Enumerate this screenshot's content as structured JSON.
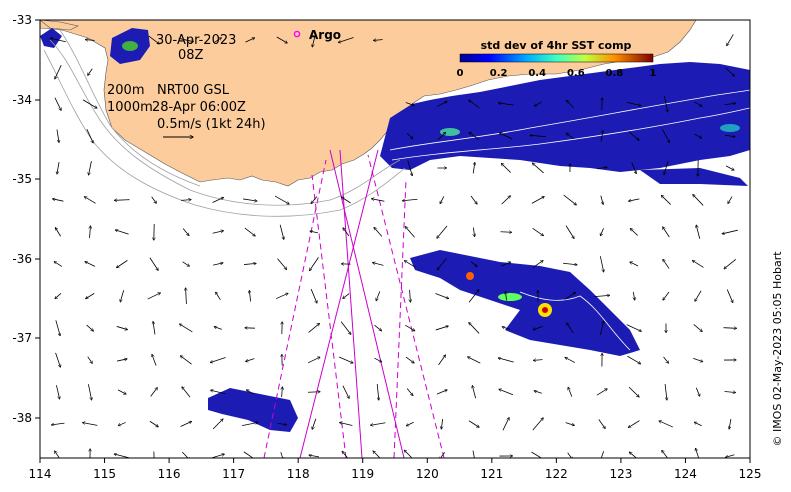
{
  "map": {
    "date": "30-Apr-2023",
    "hour": "08Z",
    "argo_label": "Argo",
    "contour_depths": "200m",
    "contour_depths_2": "1000m",
    "product": "NRT00 GSL",
    "product_time": "28-Apr 06:00Z",
    "scale_label": "0.5m/s (1kt 24h)",
    "credit": "© IMOS 02-May-2023 05:05 Hobart",
    "colorbar": {
      "title": "std dev of 4hr SST comp",
      "ticks": [
        "0",
        "0.2",
        "0.4",
        "0.6",
        "0.8",
        "1"
      ]
    },
    "x_ticks": [
      "114",
      "115",
      "116",
      "117",
      "118",
      "119",
      "120",
      "121",
      "122",
      "123",
      "124",
      "125"
    ],
    "y_ticks": [
      "-33",
      "-34",
      "-35",
      "-36",
      "-37",
      "-38"
    ],
    "colors": {
      "land": "#fccc9c",
      "sst_low": "#1c1cb4",
      "track": "#cc00cc",
      "argo": "#ff00ff"
    }
  }
}
